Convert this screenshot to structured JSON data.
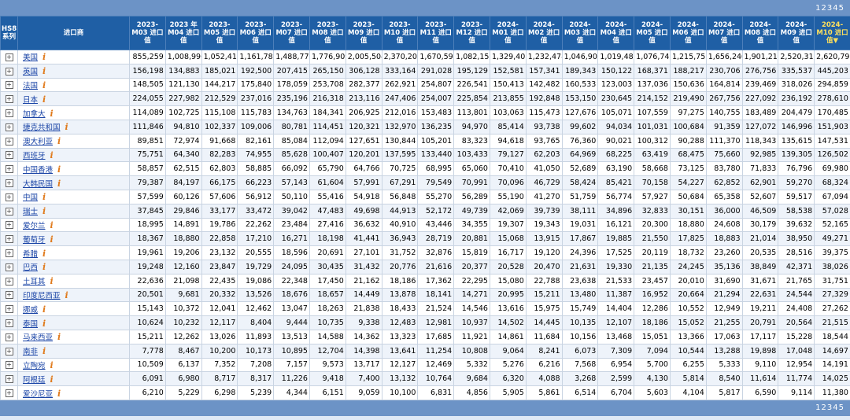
{
  "pager": [
    "1",
    "2",
    "3",
    "4",
    "5"
  ],
  "headers": {
    "hs8": "HS8系列",
    "importer": "进口商",
    "periods": [
      "2023-M03 进口值",
      "2023 年 M04 进口值",
      "2023-M05 进口值",
      "2023-M06 进口值",
      "2023-M07 进口值",
      "2023-M08 进口值",
      "2023-M09 进口值",
      "2023-M10 进口值",
      "2023-M11 进口值",
      "2023-M12 进口值",
      "2024-M01 进口值",
      "2024-M02 进口值",
      "2024-M03 进口值",
      "2024-M04 进口值",
      "2024-M05 进口值",
      "2024-M06 进口值",
      "2024-M07 进口值",
      "2024-M08 进口值",
      "2024-M09 进口值",
      "2024-M10 进口值▼"
    ]
  },
  "rows": [
    {
      "name": "美国",
      "values": [
        "855,259",
        "1,008,996",
        "1,052,418",
        "1,161,783",
        "1,488,772",
        "1,776,909",
        "2,005,504",
        "2,370,201",
        "1,670,595",
        "1,082,156",
        "1,329,408",
        "1,232,478",
        "1,046,902",
        "1,019,481",
        "1,076,746",
        "1,215,753",
        "1,656,240",
        "1,901,213",
        "2,520,319",
        "2,620,799"
      ]
    },
    {
      "name": "英国",
      "values": [
        "156,198",
        "134,883",
        "185,021",
        "192,500",
        "207,415",
        "265,150",
        "306,128",
        "333,164",
        "291,028",
        "195,129",
        "152,581",
        "157,341",
        "189,343",
        "150,122",
        "168,371",
        "188,217",
        "230,706",
        "276,756",
        "335,537",
        "445,203"
      ]
    },
    {
      "name": "法国",
      "values": [
        "148,505",
        "121,130",
        "144,217",
        "175,840",
        "178,059",
        "253,708",
        "282,377",
        "262,921",
        "254,807",
        "226,541",
        "150,413",
        "142,482",
        "160,533",
        "123,003",
        "137,036",
        "150,636",
        "164,814",
        "239,469",
        "318,026",
        "294,859"
      ]
    },
    {
      "name": "日本",
      "values": [
        "224,055",
        "227,982",
        "212,529",
        "237,016",
        "235,196",
        "216,318",
        "213,116",
        "247,406",
        "254,007",
        "225,854",
        "213,855",
        "192,848",
        "153,150",
        "230,645",
        "214,152",
        "219,490",
        "267,756",
        "227,092",
        "236,192",
        "278,610"
      ]
    },
    {
      "name": "加拿大",
      "values": [
        "114,089",
        "102,725",
        "115,108",
        "115,783",
        "134,763",
        "184,341",
        "206,925",
        "212,016",
        "153,483",
        "113,801",
        "103,063",
        "115,473",
        "127,676",
        "105,071",
        "107,559",
        "97,275",
        "140,755",
        "183,489",
        "204,479",
        "170,485"
      ]
    },
    {
      "name": "捷克共和国",
      "values": [
        "111,846",
        "94,810",
        "102,337",
        "109,006",
        "80,781",
        "114,451",
        "120,321",
        "132,970",
        "136,235",
        "94,970",
        "85,414",
        "93,738",
        "99,602",
        "94,034",
        "101,031",
        "100,684",
        "91,359",
        "127,072",
        "146,996",
        "151,903"
      ]
    },
    {
      "name": "澳大利亚",
      "values": [
        "89,851",
        "72,974",
        "91,668",
        "82,161",
        "85,084",
        "112,094",
        "127,651",
        "130,844",
        "105,201",
        "83,323",
        "94,618",
        "93,765",
        "76,360",
        "90,021",
        "100,312",
        "90,288",
        "111,370",
        "118,343",
        "135,615",
        "147,531"
      ]
    },
    {
      "name": "西班牙",
      "values": [
        "75,751",
        "64,340",
        "82,283",
        "74,955",
        "85,628",
        "100,407",
        "120,201",
        "137,595",
        "133,440",
        "103,433",
        "79,127",
        "62,203",
        "64,969",
        "68,225",
        "63,419",
        "68,475",
        "75,660",
        "92,985",
        "139,305",
        "126,502"
      ]
    },
    {
      "name": "中国香港",
      "values": [
        "58,857",
        "62,515",
        "62,803",
        "58,885",
        "66,092",
        "65,790",
        "64,766",
        "70,725",
        "68,995",
        "65,060",
        "70,410",
        "41,050",
        "52,689",
        "63,190",
        "58,668",
        "73,125",
        "83,780",
        "71,833",
        "76,796",
        "69,980"
      ]
    },
    {
      "name": "大韩民国",
      "values": [
        "79,387",
        "84,197",
        "66,175",
        "66,223",
        "57,143",
        "61,604",
        "57,991",
        "67,291",
        "79,549",
        "70,991",
        "70,096",
        "46,729",
        "58,424",
        "85,421",
        "70,158",
        "54,227",
        "62,852",
        "62,901",
        "59,270",
        "68,324"
      ]
    },
    {
      "name": "中国",
      "values": [
        "57,599",
        "60,126",
        "57,606",
        "56,912",
        "50,110",
        "55,416",
        "54,918",
        "56,848",
        "55,270",
        "56,289",
        "55,190",
        "41,270",
        "51,759",
        "56,774",
        "57,927",
        "50,684",
        "65,358",
        "52,607",
        "59,517",
        "67,094"
      ]
    },
    {
      "name": "瑞士",
      "values": [
        "37,845",
        "29,846",
        "33,177",
        "33,472",
        "39,042",
        "47,483",
        "49,698",
        "44,913",
        "52,172",
        "49,739",
        "42,069",
        "39,739",
        "38,111",
        "34,896",
        "32,833",
        "30,151",
        "36,000",
        "46,509",
        "58,538",
        "57,028"
      ]
    },
    {
      "name": "爱尔兰",
      "values": [
        "18,995",
        "14,891",
        "19,786",
        "22,262",
        "23,484",
        "27,416",
        "36,632",
        "40,910",
        "43,446",
        "34,355",
        "19,307",
        "19,343",
        "19,031",
        "16,121",
        "20,300",
        "18,880",
        "24,608",
        "30,179",
        "39,632",
        "52,165"
      ]
    },
    {
      "name": "葡萄牙",
      "values": [
        "18,367",
        "18,880",
        "22,858",
        "17,210",
        "16,271",
        "18,198",
        "41,441",
        "36,943",
        "28,719",
        "20,881",
        "15,068",
        "13,915",
        "17,867",
        "19,885",
        "21,550",
        "17,825",
        "18,883",
        "21,014",
        "38,950",
        "49,271"
      ]
    },
    {
      "name": "希腊",
      "values": [
        "19,961",
        "19,206",
        "23,132",
        "20,555",
        "18,596",
        "20,691",
        "27,101",
        "31,752",
        "32,876",
        "15,819",
        "16,717",
        "19,120",
        "24,396",
        "17,525",
        "20,119",
        "18,732",
        "23,260",
        "20,535",
        "28,516",
        "39,375"
      ]
    },
    {
      "name": "巴西",
      "values": [
        "19,248",
        "12,160",
        "23,847",
        "19,729",
        "24,095",
        "30,435",
        "31,432",
        "20,776",
        "21,616",
        "20,377",
        "20,528",
        "20,470",
        "21,631",
        "19,330",
        "21,135",
        "24,245",
        "35,136",
        "38,849",
        "42,371",
        "38,026"
      ]
    },
    {
      "name": "土耳其",
      "values": [
        "22,636",
        "21,098",
        "22,435",
        "19,086",
        "22,348",
        "17,450",
        "21,162",
        "18,186",
        "17,362",
        "22,295",
        "15,080",
        "22,788",
        "23,638",
        "21,533",
        "23,457",
        "20,010",
        "31,690",
        "31,671",
        "21,765",
        "31,751"
      ]
    },
    {
      "name": "印度尼西亚",
      "values": [
        "20,501",
        "9,681",
        "20,332",
        "13,526",
        "18,676",
        "18,657",
        "14,449",
        "13,878",
        "18,141",
        "14,271",
        "20,995",
        "15,211",
        "13,480",
        "11,387",
        "16,952",
        "20,664",
        "21,294",
        "22,631",
        "24,544",
        "27,329"
      ]
    },
    {
      "name": "挪威",
      "values": [
        "15,143",
        "10,372",
        "12,041",
        "12,462",
        "13,047",
        "18,263",
        "21,838",
        "18,433",
        "21,524",
        "14,546",
        "13,616",
        "15,975",
        "15,749",
        "14,404",
        "12,286",
        "10,552",
        "12,949",
        "19,211",
        "24,408",
        "27,262"
      ]
    },
    {
      "name": "泰国",
      "values": [
        "10,624",
        "10,232",
        "12,117",
        "8,404",
        "9,444",
        "10,735",
        "9,338",
        "12,483",
        "12,981",
        "10,937",
        "14,502",
        "14,445",
        "10,135",
        "12,107",
        "18,186",
        "15,052",
        "21,255",
        "20,791",
        "20,564",
        "21,515"
      ]
    },
    {
      "name": "马来西亚",
      "values": [
        "15,211",
        "12,262",
        "13,026",
        "11,893",
        "13,513",
        "14,588",
        "14,362",
        "13,323",
        "17,685",
        "11,921",
        "14,861",
        "11,684",
        "10,156",
        "13,468",
        "15,051",
        "13,366",
        "17,063",
        "17,117",
        "15,228",
        "18,544"
      ]
    },
    {
      "name": "南非",
      "values": [
        "7,778",
        "8,467",
        "10,200",
        "10,173",
        "10,895",
        "12,704",
        "14,398",
        "13,641",
        "11,254",
        "10,808",
        "9,064",
        "8,241",
        "6,073",
        "7,309",
        "7,094",
        "10,544",
        "13,288",
        "19,898",
        "17,048",
        "14,697"
      ]
    },
    {
      "name": "立陶宛",
      "values": [
        "10,509",
        "6,137",
        "7,352",
        "7,208",
        "7,157",
        "9,573",
        "13,717",
        "12,127",
        "12,469",
        "5,332",
        "5,276",
        "6,216",
        "7,568",
        "6,954",
        "5,700",
        "6,255",
        "5,333",
        "9,110",
        "12,954",
        "14,191"
      ]
    },
    {
      "name": "阿根廷",
      "values": [
        "6,091",
        "6,980",
        "8,717",
        "8,317",
        "11,226",
        "9,418",
        "7,400",
        "13,132",
        "10,764",
        "9,684",
        "6,320",
        "4,088",
        "3,268",
        "2,599",
        "4,130",
        "5,814",
        "8,540",
        "11,614",
        "11,774",
        "14,025"
      ]
    },
    {
      "name": "爱沙尼亚",
      "values": [
        "6,210",
        "5,229",
        "6,298",
        "5,239",
        "4,344",
        "6,151",
        "9,059",
        "10,100",
        "6,831",
        "4,856",
        "5,905",
        "5,861",
        "6,514",
        "6,704",
        "5,603",
        "4,104",
        "5,817",
        "6,590",
        "9,114",
        "11,380"
      ]
    }
  ]
}
